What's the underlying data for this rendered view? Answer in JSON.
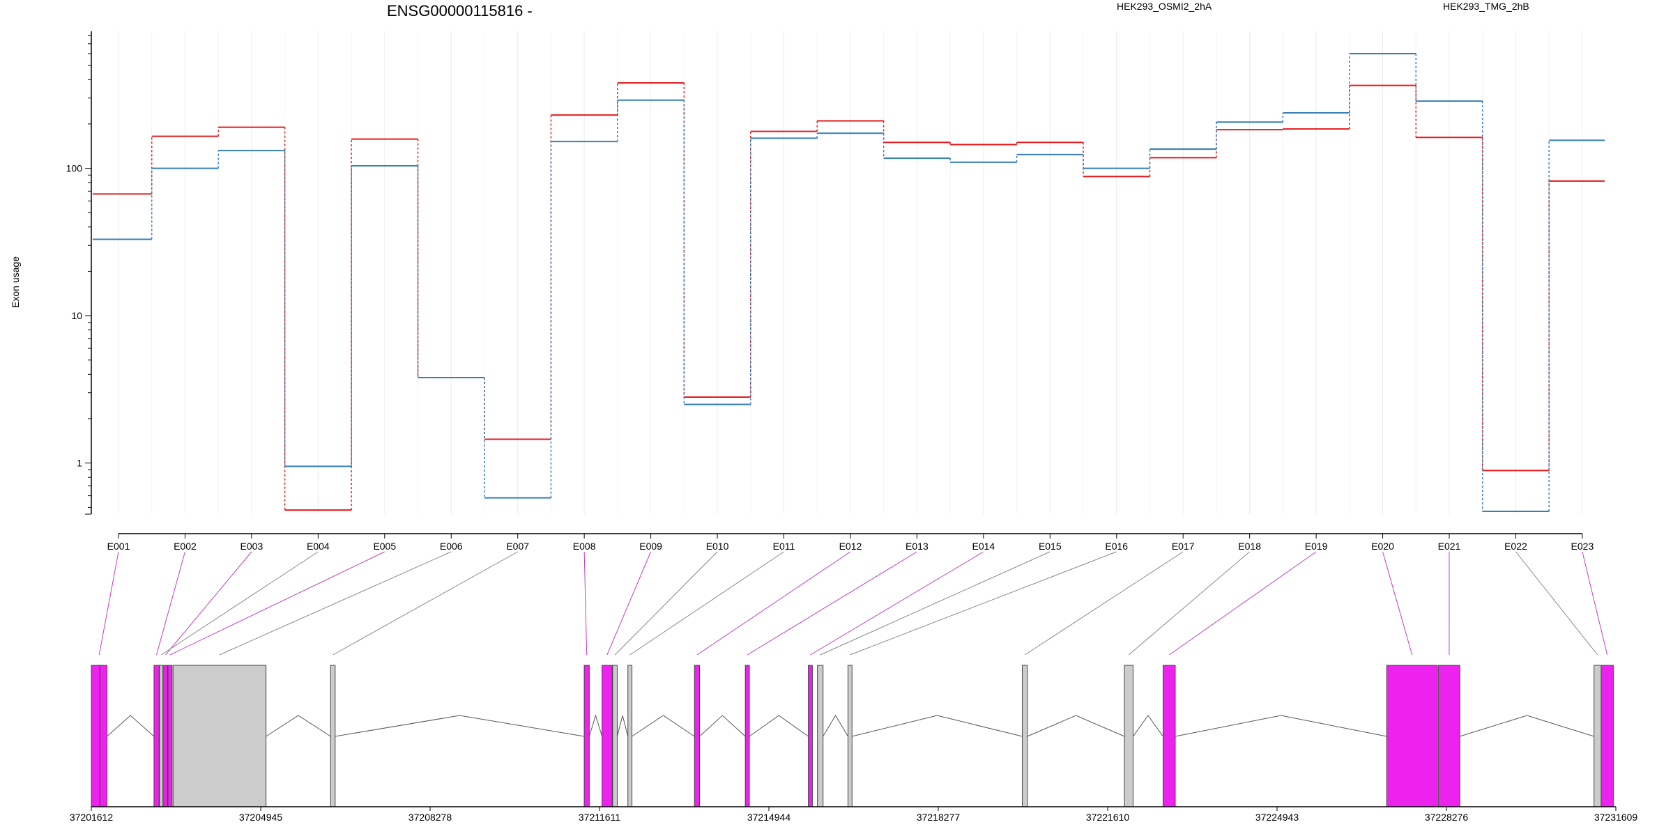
{
  "chart_data": {
    "type": "line",
    "title": "ENSG00000115816 -",
    "ylabel": "Exon usage",
    "yscale": "log",
    "ylim": [
      0.45,
      850
    ],
    "yticks": [
      1,
      10,
      100
    ],
    "ytick_labels": [
      "1",
      "10",
      "100"
    ],
    "grid": "vertical, light gray",
    "legend_placement": "top",
    "categories": [
      "E001",
      "E002",
      "E003",
      "E004",
      "E005",
      "E006",
      "E007",
      "E008",
      "E009",
      "E010",
      "E011",
      "E012",
      "E013",
      "E014",
      "E015",
      "E016",
      "E017",
      "E018",
      "E019",
      "E020",
      "E021",
      "E022",
      "E023"
    ],
    "series": [
      {
        "name": "HEK293_OSMI2_2hA",
        "color": "#e41a1c",
        "values": [
          67,
          165,
          190,
          0.48,
          158,
          3.8,
          1.45,
          230,
          380,
          2.8,
          178,
          210,
          150,
          145,
          150,
          88,
          118,
          183,
          185,
          365,
          162,
          0.89,
          82
        ]
      },
      {
        "name": "HEK293_TMG_2hB",
        "color": "#377eb8",
        "values": [
          33,
          100,
          132,
          0.95,
          104,
          3.8,
          0.58,
          152,
          290,
          2.5,
          160,
          173,
          117,
          110,
          124,
          100,
          135,
          206,
          238,
          600,
          286,
          0.47,
          155
        ]
      }
    ],
    "gene_model": {
      "coordinate_ticks": [
        "37201612",
        "37204945",
        "37208278",
        "37211611",
        "37214944",
        "37218277",
        "37221610",
        "37224943",
        "37228276",
        "37231609"
      ],
      "start": 37201612,
      "end": 37231609,
      "highlight_color": "#ee22ee",
      "neutral_color": "#cccccc",
      "exons": [
        {
          "id": "E001",
          "segments": [
            [
              37201612,
              37201780
            ],
            [
              37201780,
              37201920
            ]
          ],
          "color": "magenta"
        },
        {
          "id": "E002",
          "segments": [
            [
              37202845,
              37202945
            ]
          ],
          "color": "magenta"
        },
        {
          "id": "E003",
          "segments": [
            [
              37203035,
              37203110
            ]
          ],
          "color": "magenta"
        },
        {
          "id": "E004",
          "segments": [
            [
              37202955,
              37203020
            ]
          ],
          "color": "gray"
        },
        {
          "id": "E005",
          "segments": [
            [
              37203120,
              37203200
            ]
          ],
          "color": "magenta"
        },
        {
          "id": "E006",
          "segments": [
            [
              37203220,
              37205050
            ]
          ],
          "color": "gray"
        },
        {
          "id": "E007",
          "segments": [
            [
              37206320,
              37206410
            ]
          ],
          "color": "gray"
        },
        {
          "id": "E008",
          "segments": [
            [
              37211310,
              37211410
            ]
          ],
          "color": "magenta"
        },
        {
          "id": "E009",
          "segments": [
            [
              37211660,
              37211860
            ]
          ],
          "color": "magenta"
        },
        {
          "id": "E010",
          "segments": [
            [
              37211870,
              37211960
            ]
          ],
          "color": "gray"
        },
        {
          "id": "E011",
          "segments": [
            [
              37212170,
              37212250
            ]
          ],
          "color": "gray"
        },
        {
          "id": "E012",
          "segments": [
            [
              37213480,
              37213580
            ]
          ],
          "color": "magenta"
        },
        {
          "id": "E013",
          "segments": [
            [
              37214480,
              37214560
            ]
          ],
          "color": "magenta"
        },
        {
          "id": "E014",
          "segments": [
            [
              37215720,
              37215800
            ]
          ],
          "color": "magenta"
        },
        {
          "id": "E015",
          "segments": [
            [
              37215900,
              37216010
            ]
          ],
          "color": "gray"
        },
        {
          "id": "E016",
          "segments": [
            [
              37216500,
              37216580
            ]
          ],
          "color": "gray"
        },
        {
          "id": "E017",
          "segments": [
            [
              37219930,
              37220030
            ]
          ],
          "color": "gray"
        },
        {
          "id": "E018",
          "segments": [
            [
              37221940,
              37222110
            ]
          ],
          "color": "gray"
        },
        {
          "id": "E019",
          "segments": [
            [
              37222700,
              37222940
            ]
          ],
          "color": "magenta"
        },
        {
          "id": "E020",
          "segments": [
            [
              37227100,
              37228100
            ]
          ],
          "color": "magenta"
        },
        {
          "id": "E021",
          "segments": [
            [
              37228120,
              37228540
            ]
          ],
          "color": "magenta"
        },
        {
          "id": "E022",
          "segments": [
            [
              37231180,
              37231320
            ]
          ],
          "color": "gray"
        },
        {
          "id": "E023",
          "segments": [
            [
              37231320,
              37231560
            ]
          ],
          "color": "magenta"
        }
      ]
    }
  }
}
